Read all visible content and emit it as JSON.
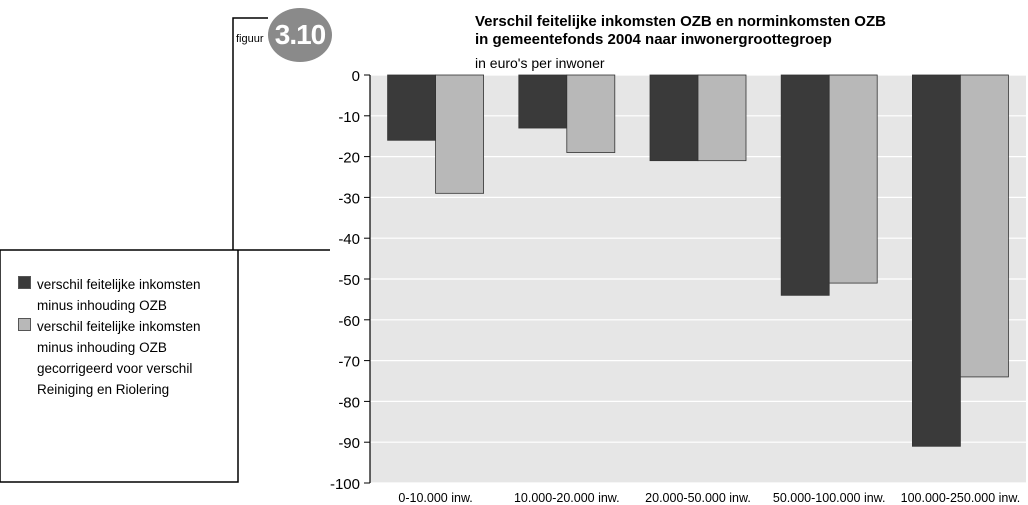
{
  "figure": {
    "label": "figuur",
    "number": "3.10"
  },
  "chart_data": {
    "type": "bar",
    "title": "Verschil feitelijke inkomsten OZB en norminkomsten OZB in gemeentefonds 2004 naar inwonergroottegroep",
    "title_lines": [
      "Verschil feitelijke inkomsten OZB en norminkomsten OZB",
      "in gemeentefonds 2004 naar inwonergroottegroep"
    ],
    "subtitle": "in euro's per inwoner",
    "categories": [
      "0-10.000 inw.",
      "10.000-20.000 inw.",
      "20.000-50.000 inw.",
      "50.000-100.000 inw.",
      "100.000-250.000 inw."
    ],
    "series": [
      {
        "name": "verschil feitelijke inkomsten minus inhouding OZB",
        "color": "#3a3a3a",
        "values": [
          -16,
          -13,
          -21,
          -54,
          -91
        ]
      },
      {
        "name": "verschil feitelijke inkomsten minus inhouding OZB gecorrigeerd voor verschil Reiniging en Riolering",
        "color": "#b8b8b8",
        "values": [
          -29,
          -19,
          -21,
          -51,
          -74
        ]
      }
    ],
    "yticks": [
      0,
      -10,
      -20,
      -30,
      -40,
      -50,
      -60,
      -70,
      -80,
      -90,
      -100
    ],
    "ylim": [
      -100,
      0
    ],
    "grid": true,
    "background": "#e6e6e6",
    "legend_position": "left"
  },
  "legend": {
    "items": [
      {
        "lines": [
          "verschil feitelijke inkomsten",
          "minus inhouding OZB"
        ],
        "color": "#3a3a3a"
      },
      {
        "lines": [
          "verschil feitelijke inkomsten",
          "minus inhouding OZB",
          "gecorrigeerd voor verschil",
          "Reiniging en Riolering"
        ],
        "color": "#b8b8b8"
      }
    ]
  }
}
